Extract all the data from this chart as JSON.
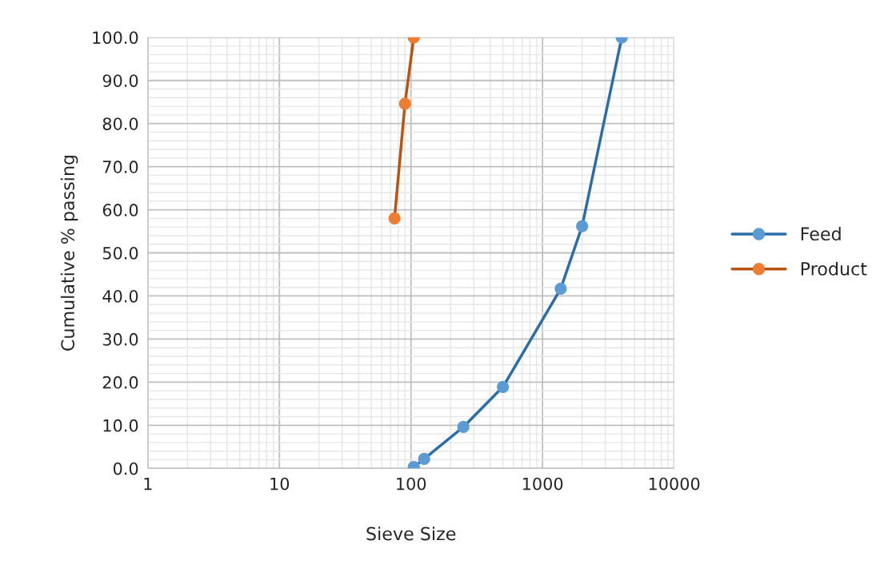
{
  "chart_data": {
    "type": "line",
    "xlabel": "Sieve Size",
    "ylabel": "Cumulative % passing",
    "log": "x",
    "xlim": [
      1,
      10000
    ],
    "xticks": [
      1,
      10,
      100,
      1000,
      10000
    ],
    "ylim": [
      0,
      100
    ],
    "yticks": [
      {
        "value": 0,
        "label": "0.0"
      },
      {
        "value": 10,
        "label": "10.0"
      },
      {
        "value": 20,
        "label": "20.0"
      },
      {
        "value": 30,
        "label": "30.0"
      },
      {
        "value": 40,
        "label": "40.0"
      },
      {
        "value": 50,
        "label": "50.0"
      },
      {
        "value": 60,
        "label": "60.0"
      },
      {
        "value": 70,
        "label": "70.0"
      },
      {
        "value": 80,
        "label": "80.0"
      },
      {
        "value": 90,
        "label": "90.0"
      },
      {
        "value": 100,
        "label": "100.0"
      }
    ],
    "grid": true,
    "legend": "right",
    "marker": "circle",
    "line_style": "solid",
    "series": [
      {
        "name": "Feed",
        "color": "#5b9bd5",
        "x": [
          105,
          126,
          250,
          500,
          1375,
          2000,
          4000
        ],
        "values": [
          0.3,
          2.2,
          9.6,
          18.9,
          41.7,
          56.2,
          100
        ]
      },
      {
        "name": "Product",
        "color": "#ed7d31",
        "x": [
          75,
          90,
          105
        ],
        "values": [
          58.0,
          84.6,
          100
        ]
      }
    ]
  }
}
